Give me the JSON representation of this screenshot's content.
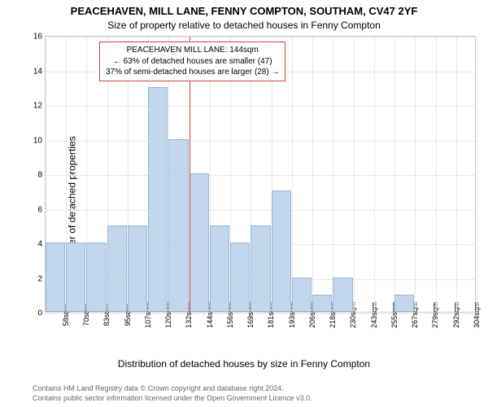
{
  "titles": {
    "line1": "PEACEHAVEN, MILL LANE, FENNY COMPTON, SOUTHAM, CV47 2YF",
    "line2": "Size of property relative to detached houses in Fenny Compton"
  },
  "axes": {
    "ylabel": "Number of detached properties",
    "xlabel": "Distribution of detached houses by size in Fenny Compton",
    "ylim": [
      0,
      16
    ],
    "ytick_step": 2,
    "yticks": [
      0,
      2,
      4,
      6,
      8,
      10,
      12,
      14,
      16
    ]
  },
  "chart": {
    "type": "histogram",
    "bar_color": "#c2d7ec",
    "bar_border": "#9bb8d4",
    "grid_color": "#e8e8e8",
    "background_color": "#ffffff",
    "categories": [
      "58sqm",
      "70sqm",
      "83sqm",
      "95sqm",
      "107sqm",
      "120sqm",
      "132sqm",
      "144sqm",
      "156sqm",
      "169sqm",
      "181sqm",
      "193sqm",
      "206sqm",
      "218sqm",
      "230sqm",
      "243sqm",
      "255sqm",
      "267sqm",
      "279sqm",
      "292sqm",
      "304sqm"
    ],
    "values": [
      4,
      4,
      4,
      5,
      5,
      13,
      10,
      8,
      5,
      4,
      5,
      7,
      2,
      1,
      2,
      0,
      0,
      1,
      0,
      0,
      0
    ]
  },
  "reference_line": {
    "x_category": "144sqm",
    "color": "#d04040"
  },
  "annotation": {
    "line1": "PEACEHAVEN MILL LANE: 144sqm",
    "line2": "← 63% of detached houses are smaller (47)",
    "line3": "37% of semi-detached houses are larger (28) →",
    "border_color": "#d04040"
  },
  "footer": {
    "line1": "Contains HM Land Registry data © Crown copyright and database right 2024.",
    "line2": "Contains public sector information licensed under the Open Government Licence v3.0."
  }
}
